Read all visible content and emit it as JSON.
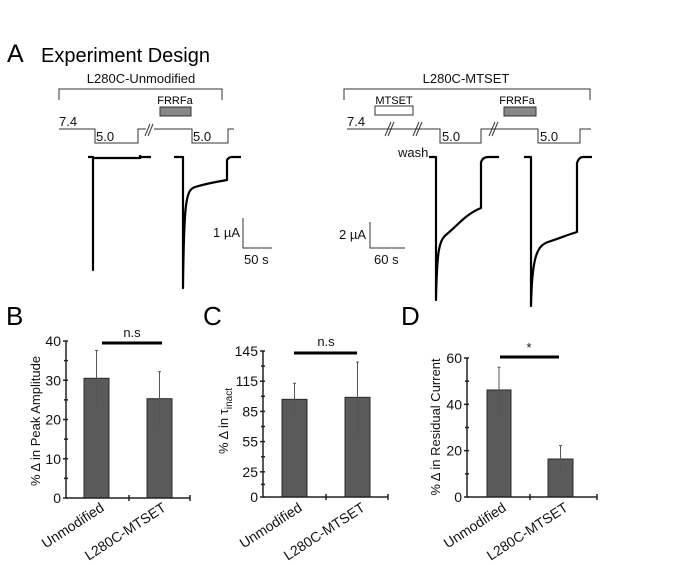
{
  "panel_a": {
    "letter": "A",
    "title": "Experiment Design",
    "left": {
      "title": "L280C-Unmodified",
      "drug": "FRRFa",
      "ph_start": "7.4",
      "ph_low1": "5.0",
      "ph_low2": "5.0",
      "scale_current": "1 µA",
      "scale_time": "50 s"
    },
    "right": {
      "title": "L280C-MTSET",
      "reagent": "MTSET",
      "drug": "FRRFa",
      "ph_start": "7.4",
      "wash": "wash",
      "ph_low1": "5.0",
      "ph_low2": "5.0",
      "scale_current": "2 µA",
      "scale_time": "60 s"
    },
    "colors": {
      "drug_bar": "#888888",
      "trace": "#000000"
    }
  },
  "chart_data": [
    {
      "letter": "B",
      "type": "bar",
      "categories": [
        "Unmodified",
        "L280C-MTSET"
      ],
      "values": [
        30.5,
        25.3
      ],
      "error_low": [
        23.4,
        18.3
      ],
      "error_high": [
        37.6,
        32.2
      ],
      "ylabel": "% Δ in Peak Amplitude",
      "ylim": [
        0,
        40
      ],
      "yticks": [
        0,
        10,
        20,
        30,
        40
      ],
      "significance": "n.s"
    },
    {
      "letter": "C",
      "type": "bar",
      "categories": [
        "Unmodified",
        "L280C-MTSET"
      ],
      "values": [
        97,
        99
      ],
      "error_low": [
        81,
        63
      ],
      "error_high": [
        113,
        134
      ],
      "ylabel": "% Δ in τ",
      "ylabel_sub": "inact",
      "ylim": [
        0,
        145
      ],
      "yticks": [
        0,
        25,
        55,
        85,
        115,
        145
      ],
      "significance": "n.s"
    },
    {
      "letter": "D",
      "type": "bar",
      "categories": [
        "Unmodified",
        "L280C-MTSET"
      ],
      "values": [
        46.2,
        16.4
      ],
      "error_low": [
        36,
        10.5
      ],
      "error_high": [
        56,
        22.2
      ],
      "ylabel": "% Δ in Residual Current",
      "ylim": [
        0,
        60
      ],
      "yticks": [
        0,
        20,
        40,
        60
      ],
      "significance": "*"
    }
  ],
  "colors": {
    "bar_fill": "#5a5a5a",
    "bar_stroke": "#2a2a2a",
    "error": "#555555"
  }
}
